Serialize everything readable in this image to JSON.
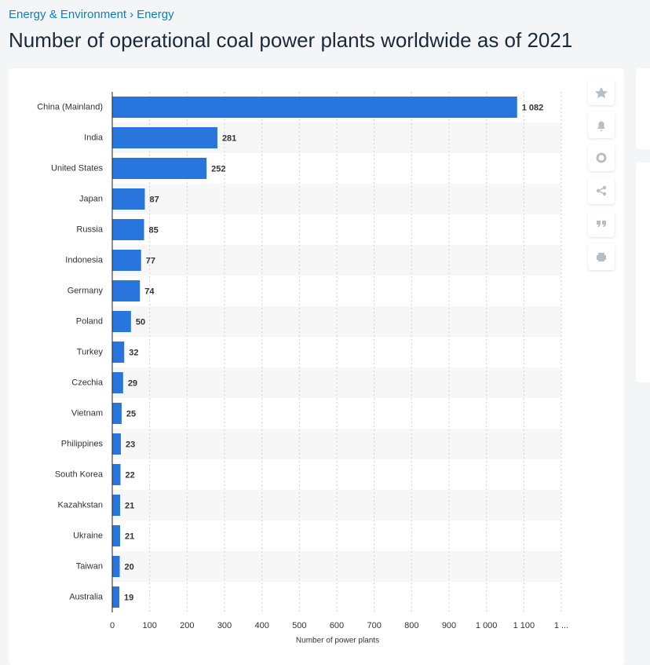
{
  "breadcrumb": [
    "Energy & Environment",
    "Energy"
  ],
  "separator": "›",
  "chart_data": {
    "type": "bar",
    "orientation": "horizontal",
    "title": "Number of operational coal power plants worldwide as of 2021",
    "x_label": "Number of power plants",
    "categories": [
      "China (Mainland)",
      "India",
      "United States",
      "Japan",
      "Russia",
      "Indonesia",
      "Germany",
      "Poland",
      "Turkey",
      "Czechia",
      "Vietnam",
      "Philippines",
      "South Korea",
      "Kazahkstan",
      "Ukraine",
      "Taiwan",
      "Australia"
    ],
    "values": [
      1082,
      281,
      252,
      87,
      85,
      77,
      74,
      50,
      32,
      29,
      25,
      23,
      22,
      21,
      21,
      20,
      19
    ],
    "value_labels": [
      "1 082",
      "281",
      "252",
      "87",
      "85",
      "77",
      "74",
      "50",
      "32",
      "29",
      "25",
      "23",
      "22",
      "21",
      "21",
      "20",
      "19"
    ],
    "color": "#2876dd",
    "xlim": [
      0,
      1200
    ],
    "xticks": [
      0,
      100,
      200,
      300,
      400,
      500,
      600,
      700,
      800,
      900,
      {
        "value": 1000,
        "label": "1 000"
      },
      {
        "value": 1100,
        "label": "1 100"
      },
      {
        "value": 1200,
        "label": "1 ..."
      }
    ],
    "grid": true
  }
}
